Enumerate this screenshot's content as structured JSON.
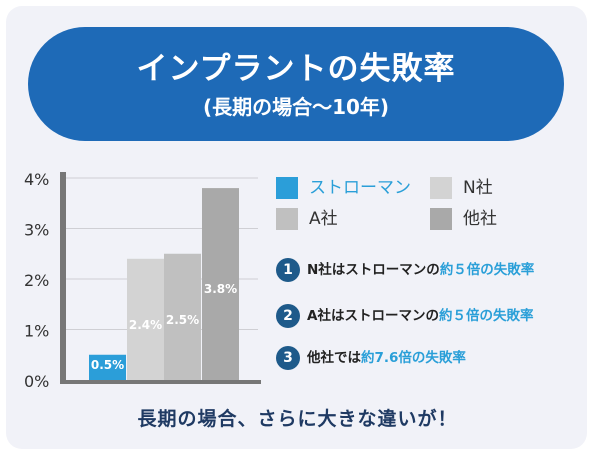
{
  "banner": {
    "title": "インプラントの失敗率",
    "subtitle": "(長期の場合〜10年)"
  },
  "chart_data": {
    "type": "bar",
    "categories": [
      "ストローマン",
      "N社",
      "A社",
      "他社"
    ],
    "values": [
      0.5,
      2.4,
      2.5,
      3.8
    ],
    "value_labels": [
      "0.5%",
      "2.4%",
      "2.5%",
      "3.8%"
    ],
    "yticks": [
      0,
      1,
      2,
      3,
      4
    ],
    "ytick_labels": [
      "0%",
      "1%",
      "2%",
      "3%",
      "4%"
    ],
    "ylim": [
      0,
      4
    ],
    "grid": true,
    "legend_position": "right",
    "colors": [
      "#2b9ed9",
      "#d3d3d3",
      "#c0c0c0",
      "#a9a9a9"
    ]
  },
  "legend": [
    {
      "label": "ストローマン",
      "color": "#2b9ed9"
    },
    {
      "label": "N社",
      "color": "#d3d3d3"
    },
    {
      "label": "A社",
      "color": "#c0c0c0"
    },
    {
      "label": "他社",
      "color": "#a9a9a9"
    }
  ],
  "notes": [
    {
      "number": "1",
      "prefix": "N社はストローマンの",
      "highlight": "約５倍の失敗率"
    },
    {
      "number": "2",
      "prefix": "A社はストローマンの",
      "highlight": "約５倍の失敗率"
    },
    {
      "number": "3",
      "prefix": "他社では",
      "highlight": "約7.6倍の失敗率"
    }
  ],
  "footer": "長期の場合、さらに大きな違いが！"
}
